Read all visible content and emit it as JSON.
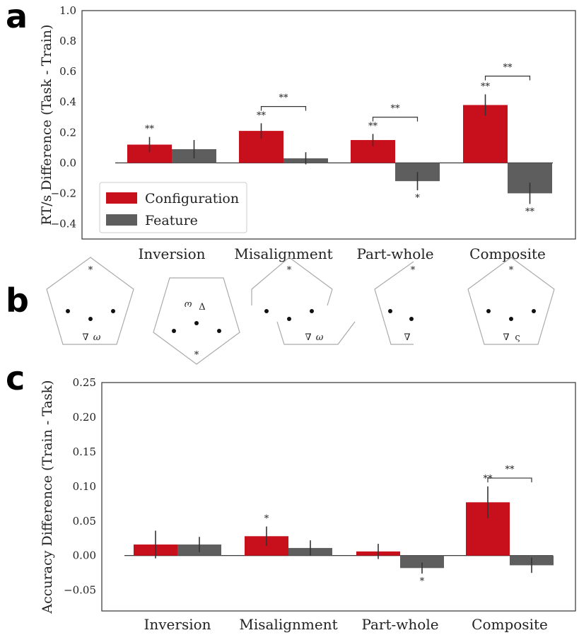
{
  "panels": {
    "a": "a",
    "b": "b",
    "c": "c"
  },
  "colors": {
    "configuration": "#c8101d",
    "feature": "#5e5e5e",
    "axis": "#333333"
  },
  "chart_data": [
    {
      "id": "a",
      "type": "bar",
      "ylabel": "RT/s Difference (Task - Train)",
      "ylim": [
        -0.5,
        1.0
      ],
      "yticks": [
        "1.0",
        "0.8",
        "0.6",
        "0.4",
        "0.2",
        "0.0",
        "−0.2",
        "−0.4"
      ],
      "ytick_values": [
        1.0,
        0.8,
        0.6,
        0.4,
        0.2,
        0.0,
        -0.2,
        -0.4
      ],
      "categories": [
        "Inversion",
        "Misalignment",
        "Part-whole",
        "Composite"
      ],
      "legend": {
        "placement": "lower-left",
        "entries": [
          "Configuration",
          "Feature"
        ]
      },
      "series": [
        {
          "name": "Configuration",
          "values": [
            0.12,
            0.21,
            0.15,
            0.38
          ],
          "err": [
            0.05,
            0.05,
            0.04,
            0.07
          ],
          "sig": [
            "**",
            "**",
            "**",
            "**"
          ]
        },
        {
          "name": "Feature",
          "values": [
            0.09,
            0.03,
            -0.12,
            -0.2
          ],
          "err": [
            0.06,
            0.04,
            0.06,
            0.07
          ],
          "sig": [
            "",
            "",
            "*",
            "**"
          ]
        }
      ],
      "brackets": [
        {
          "category": 1,
          "label": "**",
          "y": 0.37
        },
        {
          "category": 2,
          "label": "**",
          "y": 0.3
        },
        {
          "category": 3,
          "label": "**",
          "y": 0.57
        }
      ]
    },
    {
      "id": "c",
      "type": "bar",
      "ylabel": "Accuracy Difference (Train - Task)",
      "ylim": [
        -0.08,
        0.25
      ],
      "yticks": [
        "0.25",
        "0.20",
        "0.15",
        "0.10",
        "0.05",
        "0.00",
        "−0.05"
      ],
      "ytick_values": [
        0.25,
        0.2,
        0.15,
        0.1,
        0.05,
        0.0,
        -0.05
      ],
      "categories": [
        "Inversion",
        "Misalignment",
        "Part-whole",
        "Composite"
      ],
      "series": [
        {
          "name": "Configuration",
          "values": [
            0.016,
            0.028,
            0.006,
            0.077
          ],
          "err": [
            0.02,
            0.014,
            0.011,
            0.023
          ],
          "sig": [
            "",
            "*",
            "",
            "**"
          ]
        },
        {
          "name": "Feature",
          "values": [
            0.016,
            0.011,
            -0.018,
            -0.014
          ],
          "err": [
            0.011,
            0.011,
            0.008,
            0.011
          ],
          "sig": [
            "",
            "",
            "*",
            ""
          ]
        }
      ],
      "brackets": [
        {
          "category": 3,
          "label": "**",
          "y": 0.112
        }
      ]
    }
  ],
  "diagram_b": {
    "glyphs": {
      "star": "*",
      "nabla": "∇",
      "omega": "ω",
      "delta": "Δ",
      "rotated_omega": "ω",
      "stigma": "ς"
    }
  }
}
